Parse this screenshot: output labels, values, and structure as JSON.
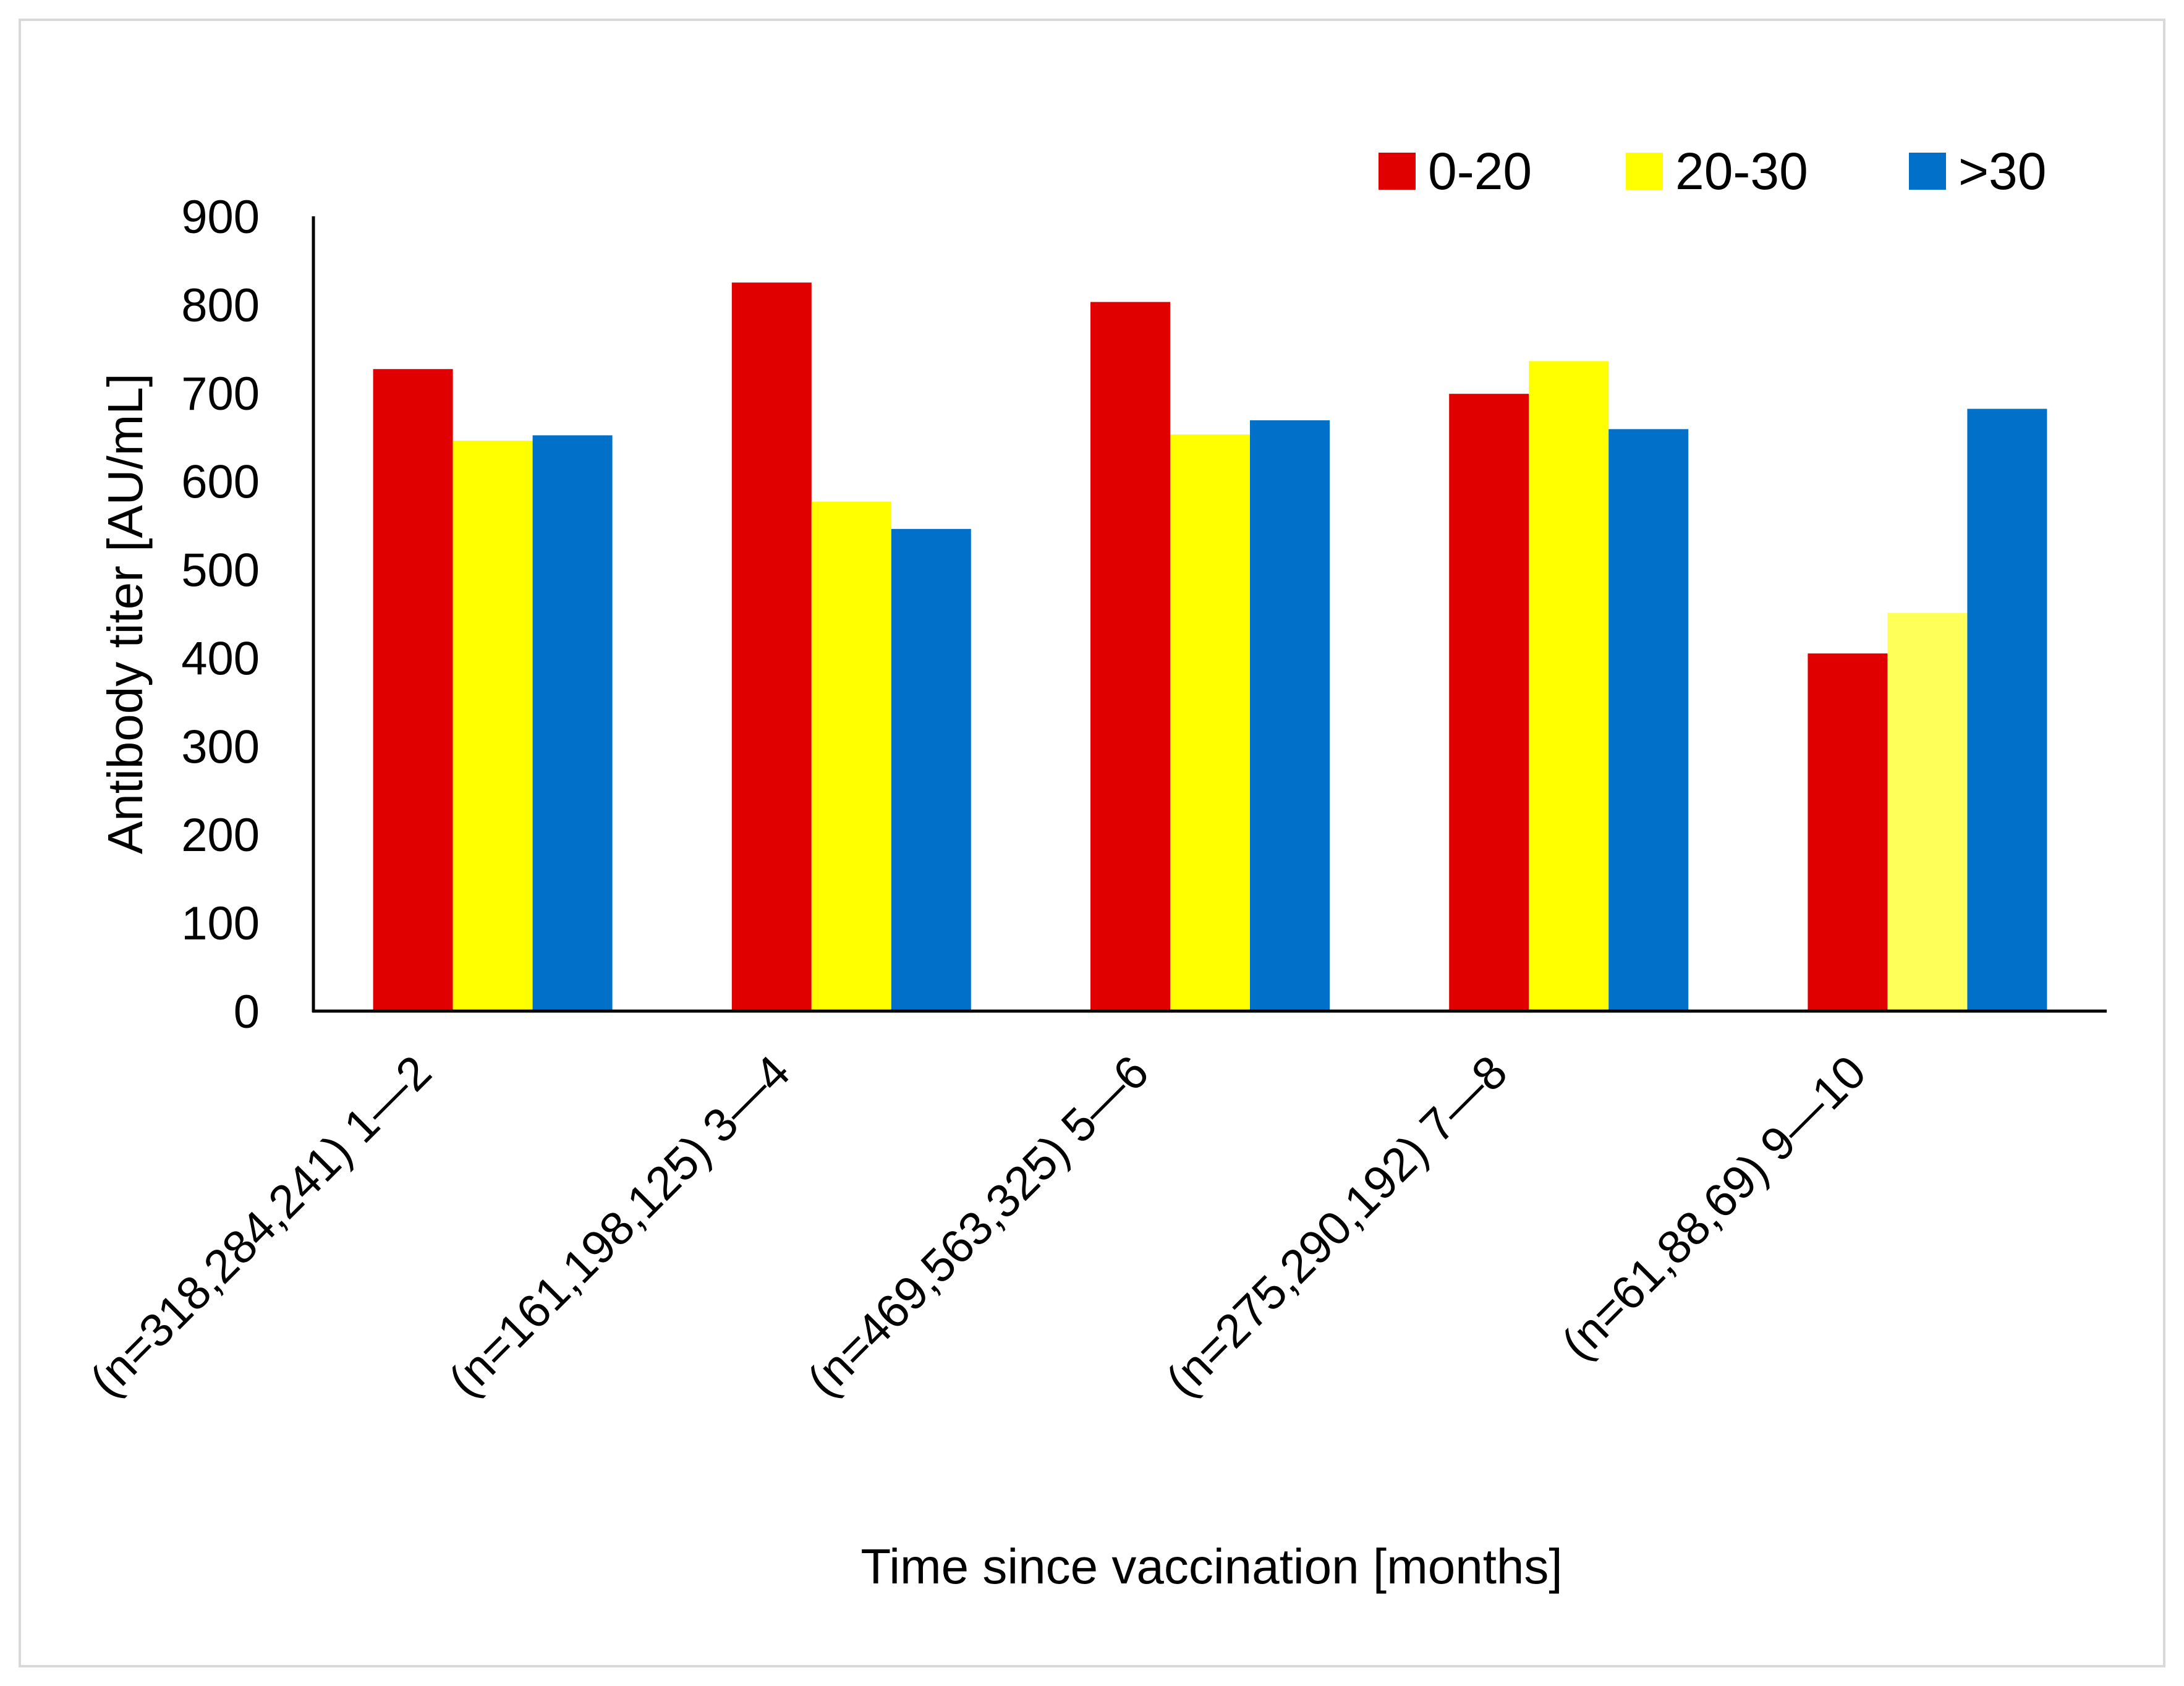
{
  "chart_data": {
    "type": "bar",
    "title": "",
    "xlabel": "Time since vaccination [months]",
    "ylabel": "Antibody titer [AU/mL]",
    "ylim": [
      0,
      900
    ],
    "yticks": [
      0,
      100,
      200,
      300,
      400,
      500,
      600,
      700,
      800,
      900
    ],
    "ytick_labels": [
      "0",
      "100",
      "200",
      "300",
      "400",
      "500",
      "600",
      "700",
      "800",
      "900"
    ],
    "categories": [
      "(n=318,284,241) 1—2",
      "(n=161,198,125) 3—4",
      "(n=469,563,325) 5—6",
      "(n=275,290,192) 7—8",
      "(n=61,88,69) 9—10"
    ],
    "series": [
      {
        "name": "0-20",
        "color": "#e00000",
        "values": [
          727,
          825,
          803,
          699,
          405
        ]
      },
      {
        "name": "20-30",
        "color": "#ffff00",
        "values": [
          646,
          577,
          653,
          736,
          451
        ]
      },
      {
        "name": ">30",
        "color": "#0070c8",
        "values": [
          652,
          546,
          669,
          659,
          682
        ]
      }
    ],
    "last_category_colors": [
      "#e00000",
      "#ffff5a",
      "#0070c8"
    ],
    "legend_position": "top-right",
    "grid": false
  }
}
